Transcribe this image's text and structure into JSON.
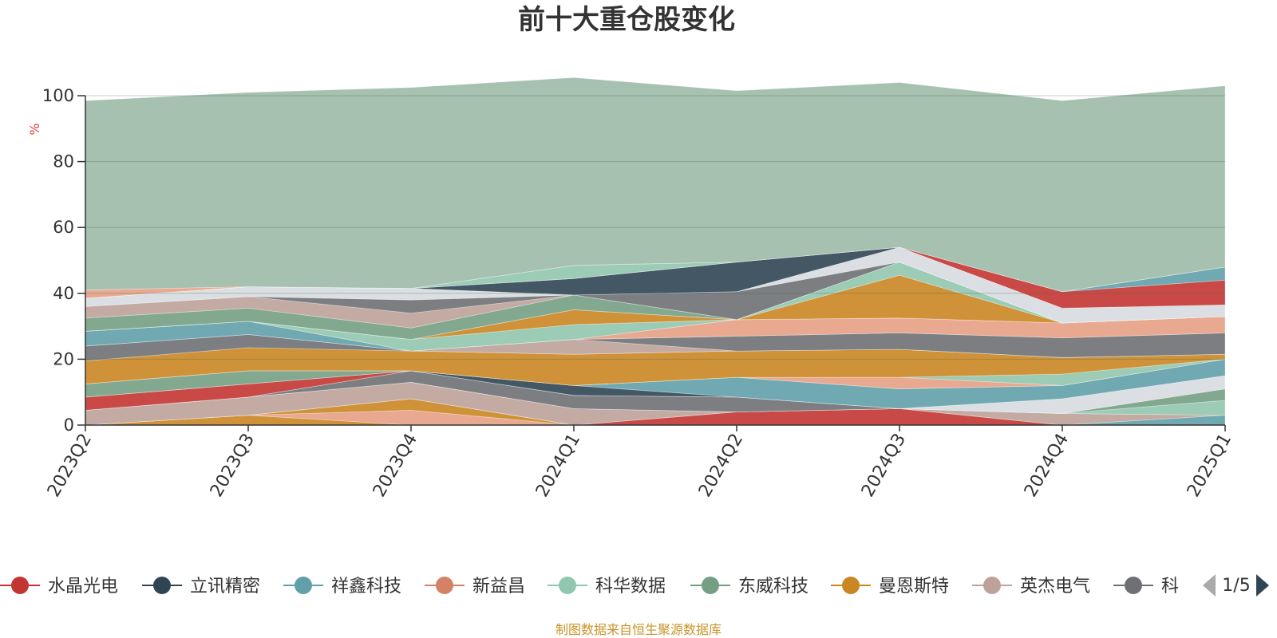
{
  "title": "前十大重仓股变化",
  "source_note": "制图数据来自恒生聚源数据库",
  "legend": {
    "items": [
      {
        "label": "水晶光电",
        "color": "#c23531"
      },
      {
        "label": "立讯精密",
        "color": "#2f4554"
      },
      {
        "label": "祥鑫科技",
        "color": "#61a0a8"
      },
      {
        "label": "新益昌",
        "color": "#d48265"
      },
      {
        "label": "科华数据",
        "color": "#91c7ae"
      },
      {
        "label": "东威科技",
        "color": "#749f83"
      },
      {
        "label": "曼恩斯特",
        "color": "#ca8622"
      },
      {
        "label": "英杰电气",
        "color": "#bda29a"
      },
      {
        "label": "科",
        "color": "#6e7074"
      }
    ],
    "pager": "1/5"
  },
  "chart_data": {
    "type": "area",
    "stacked": true,
    "title": "前十大重仓股变化",
    "ylabel": "%",
    "xlabel": "",
    "categories": [
      "2023Q2",
      "2023Q3",
      "2023Q4",
      "2024Q1",
      "2024Q2",
      "2024Q3",
      "2024Q4",
      "2025Q1"
    ],
    "ylim": [
      0,
      100
    ],
    "yticks": [
      0,
      20,
      40,
      60,
      80,
      100
    ],
    "grid": true,
    "legend_position": "bottom",
    "layers": [
      {
        "color": "#ca8622",
        "values": [
          0,
          3,
          0,
          0,
          0,
          0,
          0,
          0
        ]
      },
      {
        "color": "#e7a085",
        "values": [
          0,
          0,
          4.5,
          0,
          0,
          0,
          0,
          0
        ]
      },
      {
        "color": "#ca8622",
        "values": [
          0,
          0,
          3.5,
          0,
          0,
          0,
          0,
          0
        ]
      },
      {
        "color": "#c23531",
        "values": [
          0,
          0,
          0,
          0,
          4,
          5,
          0,
          0
        ]
      },
      {
        "color": "#61a0a8",
        "values": [
          0,
          0,
          0,
          0,
          0,
          0,
          0,
          3
        ]
      },
      {
        "color": "#bda29a",
        "values": [
          4.5,
          5.5,
          5,
          5,
          0,
          0,
          3.5,
          0
        ]
      },
      {
        "color": "#91c7ae",
        "values": [
          0,
          0,
          0,
          0,
          0,
          0,
          0,
          4.5
        ]
      },
      {
        "color": "#749f83",
        "values": [
          0,
          0,
          0,
          0,
          0,
          0,
          0,
          3.5
        ]
      },
      {
        "color": "#6e7074",
        "values": [
          0,
          0,
          3.5,
          4,
          4.5,
          0,
          0,
          0
        ]
      },
      {
        "color": "#d7dbe0",
        "values": [
          0,
          0,
          0,
          0,
          0,
          0,
          4.5,
          4
        ]
      },
      {
        "color": "#c23531",
        "values": [
          4,
          4,
          0,
          0,
          0,
          0,
          0,
          0
        ]
      },
      {
        "color": "#2f4554",
        "values": [
          0,
          0,
          0,
          3,
          0,
          0,
          0,
          0
        ]
      },
      {
        "color": "#61a0a8",
        "values": [
          0,
          0,
          0,
          0,
          6,
          6,
          4,
          5
        ]
      },
      {
        "color": "#749f83",
        "values": [
          4,
          4,
          0,
          0,
          0,
          0,
          0,
          0
        ]
      },
      {
        "color": "#e7a085",
        "values": [
          0,
          0,
          0,
          0,
          0,
          3.5,
          0,
          0
        ]
      },
      {
        "color": "#91c7ae",
        "values": [
          0,
          0,
          0,
          0,
          0,
          0,
          3.5,
          0
        ]
      },
      {
        "color": "#ca8622",
        "values": [
          7,
          7,
          6,
          9.5,
          8,
          8.5,
          5,
          1.5
        ]
      },
      {
        "color": "#6e7074",
        "values": [
          4.5,
          4,
          0,
          0,
          0,
          0,
          0,
          0
        ]
      },
      {
        "color": "#bda29a",
        "values": [
          0,
          0,
          0,
          4.5,
          0,
          0,
          0,
          0
        ]
      },
      {
        "color": "#6e7074",
        "values": [
          0,
          0,
          0,
          0,
          4.5,
          5,
          6,
          6.5
        ]
      },
      {
        "color": "#61a0a8",
        "values": [
          4.5,
          4,
          0,
          0,
          0,
          0,
          0,
          0
        ]
      },
      {
        "color": "#e7a085",
        "values": [
          0,
          0,
          0,
          0,
          5,
          4.5,
          4.5,
          5
        ]
      },
      {
        "color": "#91c7ae",
        "values": [
          0,
          0,
          3.5,
          4.5,
          0,
          0,
          0,
          0
        ]
      },
      {
        "color": "#ca8622",
        "values": [
          0,
          0,
          0,
          4.5,
          0,
          13,
          0,
          0
        ]
      },
      {
        "color": "#91c7ae",
        "values": [
          0,
          0,
          0,
          0,
          0,
          4,
          0,
          0
        ]
      },
      {
        "color": "#749f83",
        "values": [
          4,
          4,
          3.5,
          4.5,
          0,
          0,
          0,
          0
        ]
      },
      {
        "color": "#bda29a",
        "values": [
          3.5,
          3.5,
          4.5,
          0,
          0,
          0,
          0,
          0
        ]
      },
      {
        "color": "#6e7074",
        "values": [
          0,
          0,
          4,
          0,
          8.5,
          0,
          0,
          0
        ]
      },
      {
        "color": "#d7dbe0",
        "values": [
          2.5,
          3,
          3.5,
          0,
          0,
          4.5,
          4.5,
          3.5
        ]
      },
      {
        "color": "#2f4554",
        "values": [
          0,
          0,
          0,
          5,
          9,
          0,
          0,
          0
        ]
      },
      {
        "color": "#c23531",
        "values": [
          0,
          0,
          0,
          0,
          0,
          0,
          5,
          7.5
        ]
      },
      {
        "color": "#61a0a8",
        "values": [
          0,
          0,
          0,
          0,
          0,
          0,
          0,
          4
        ]
      },
      {
        "color": "#91c7ae",
        "values": [
          0,
          0,
          0,
          4,
          0,
          0,
          0,
          0
        ]
      },
      {
        "color": "#e7a085",
        "values": [
          2.5,
          0,
          0,
          0,
          0,
          0,
          0,
          0
        ]
      },
      {
        "color": "#9dbaa9",
        "values": [
          57.5,
          59,
          61,
          57,
          52,
          50,
          58,
          55
        ]
      }
    ]
  }
}
